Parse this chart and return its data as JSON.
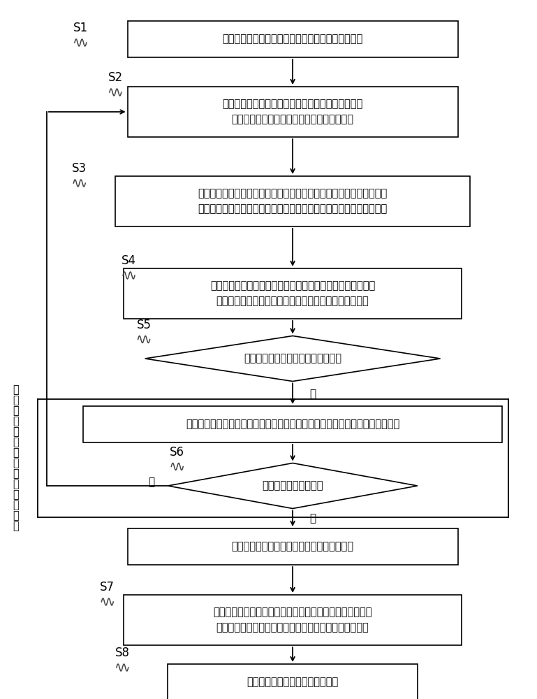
{
  "bg_color": "#ffffff",
  "box_color": "#ffffff",
  "box_edge_color": "#000000",
  "arrow_color": "#000000",
  "text_color": "#000000",
  "s1_text": "获取船舶轨迹集中的各轨迹段并归类为未归类轨迹段",
  "s2_text": "获取当前轨迹段中的末端轨迹点与其对应船舶轨迹的\n首端轨迹点之间曲线长度归一化后的加权长度",
  "s3_text": "根据当前末端轨迹点的加权长度在对应船舶轨迹中的比例，通过线性插\n值法获取其它船舶轨迹中相同加权长度比例处的轨迹点作为配对轨迹点",
  "s4_text": "根据当前末端轨迹点与相应配对轨迹点处的目标函数计算曲线\n长度距离，并结合轨迹段的航行数据计算综合相似度度量",
  "s5_text": "综合相似度量是否大于预设度量阈值",
  "s5b_text": "获取当前末端轨迹点对应轨迹段预设邻域范围内的轨迹段，并归类为聚类轨迹段",
  "s6_text": "是否有新增聚类轨迹段",
  "s7b_text": "根据当前的聚类轨迹段获取船舶轨迹聚类结果",
  "s7_text": "提取船舶轨迹聚类结果中的聚类中心轨迹，并以聚类中心轨\n迹为锚点进行垂直于航向上扇形扫描区域的航道范围提取",
  "s8_text": "输出提取结果并作为船舶典型航道",
  "side_text": "以\n新\n增\n的\n各\n聚\n类\n轨\n迹\n段\n作\n为\n输\n入",
  "yes_text": "是",
  "no_text": "否"
}
